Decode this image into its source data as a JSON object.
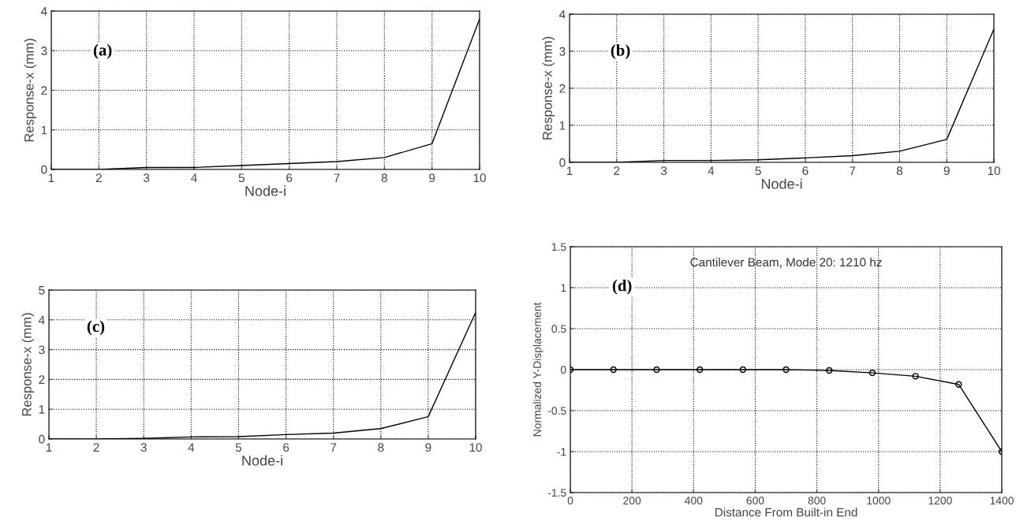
{
  "chart_data": [
    {
      "type": "line",
      "xlabel": "Node-i",
      "ylabel": "Response-x (mm)",
      "annotations": [
        "(a)"
      ],
      "x": [
        1,
        2,
        3,
        4,
        5,
        6,
        7,
        8,
        9,
        10
      ],
      "series": [
        {
          "color": "#000000",
          "values": [
            0,
            0,
            0.05,
            0.05,
            0.1,
            0.15,
            0.2,
            0.3,
            0.65,
            3.8
          ]
        }
      ],
      "xlim": [
        1,
        10
      ],
      "xticks": [
        1,
        2,
        3,
        4,
        5,
        6,
        7,
        8,
        9,
        10
      ],
      "ylim": [
        0,
        4
      ],
      "yticks": [
        0,
        1,
        2,
        3,
        4
      ],
      "grid": true,
      "line_style": "solid"
    },
    {
      "type": "line",
      "xlabel": "Node-i",
      "ylabel": "Response-x (mm)",
      "annotations": [
        "(b)"
      ],
      "x": [
        1,
        2,
        3,
        4,
        5,
        6,
        7,
        8,
        9,
        10
      ],
      "series": [
        {
          "color": "#000000",
          "values": [
            0,
            0,
            0.05,
            0.05,
            0.07,
            0.12,
            0.18,
            0.3,
            0.62,
            3.6
          ]
        }
      ],
      "xlim": [
        1,
        10
      ],
      "xticks": [
        1,
        2,
        3,
        4,
        5,
        6,
        7,
        8,
        9,
        10
      ],
      "ylim": [
        0,
        4
      ],
      "yticks": [
        0,
        1,
        2,
        3,
        4
      ],
      "grid": true,
      "line_style": "solid"
    },
    {
      "type": "line",
      "xlabel": "Node-i",
      "ylabel": "Response-x (mm)",
      "annotations": [
        "(c)"
      ],
      "x": [
        1,
        2,
        3,
        4,
        5,
        6,
        7,
        8,
        9,
        10
      ],
      "series": [
        {
          "color": "#000000",
          "values": [
            0,
            0,
            0.02,
            0.07,
            0.08,
            0.15,
            0.2,
            0.35,
            0.75,
            4.25
          ]
        }
      ],
      "xlim": [
        1,
        10
      ],
      "xticks": [
        1,
        2,
        3,
        4,
        5,
        6,
        7,
        8,
        9,
        10
      ],
      "ylim": [
        0,
        5
      ],
      "yticks": [
        0,
        1,
        2,
        3,
        4,
        5
      ],
      "grid": true,
      "line_style": "solid"
    },
    {
      "type": "line",
      "title": "Cantilever Beam, Mode 20: 1210 hz",
      "xlabel": "Distance From Built-in End",
      "ylabel": "Normalized Y-Displacement",
      "annotations": [
        "(d)"
      ],
      "x": [
        0,
        140,
        280,
        420,
        560,
        700,
        840,
        980,
        1120,
        1260,
        1400
      ],
      "series": [
        {
          "color": "#000000",
          "values": [
            0,
            0,
            0,
            0,
            0,
            0,
            -0.01,
            -0.04,
            -0.08,
            -0.18,
            -1
          ]
        }
      ],
      "xlim": [
        0,
        1400
      ],
      "xticks": [
        0,
        200,
        400,
        600,
        800,
        1000,
        1200,
        1400
      ],
      "ylim": [
        -1.5,
        1.5
      ],
      "yticks": [
        -1.5,
        -1,
        -0.5,
        0,
        0.5,
        1,
        1.5
      ],
      "grid": true,
      "marker": "circle",
      "line_style": "solid"
    }
  ]
}
